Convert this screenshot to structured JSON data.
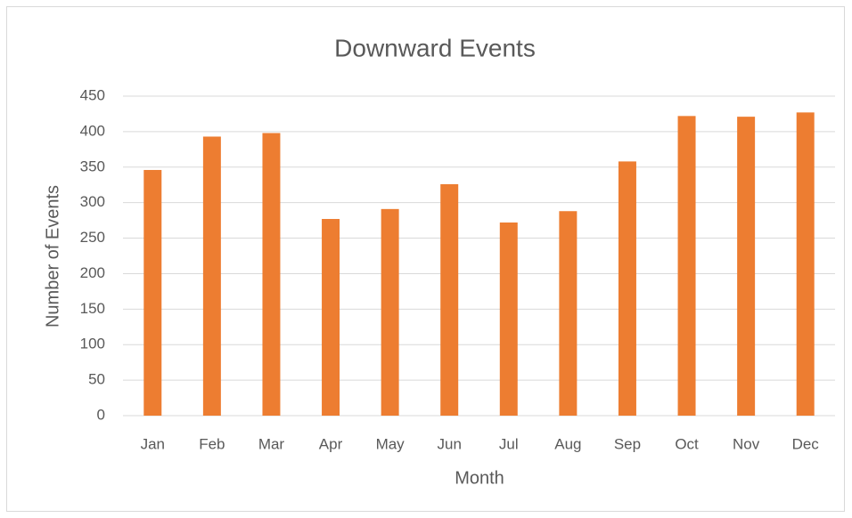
{
  "chart_data": {
    "type": "bar",
    "title": "Downward Events",
    "x_label": "Month",
    "y_label": "Number of Events",
    "categories": [
      "Jan",
      "Feb",
      "Mar",
      "Apr",
      "May",
      "Jun",
      "Jul",
      "Aug",
      "Sep",
      "Oct",
      "Nov",
      "Dec"
    ],
    "values": [
      346,
      393,
      398,
      277,
      291,
      326,
      272,
      288,
      358,
      422,
      421,
      427
    ],
    "color": "#ed7d31",
    "ylim": [
      0,
      450
    ],
    "yticks": [
      0,
      50,
      100,
      150,
      200,
      250,
      300,
      350,
      400,
      450
    ],
    "grid": true
  }
}
